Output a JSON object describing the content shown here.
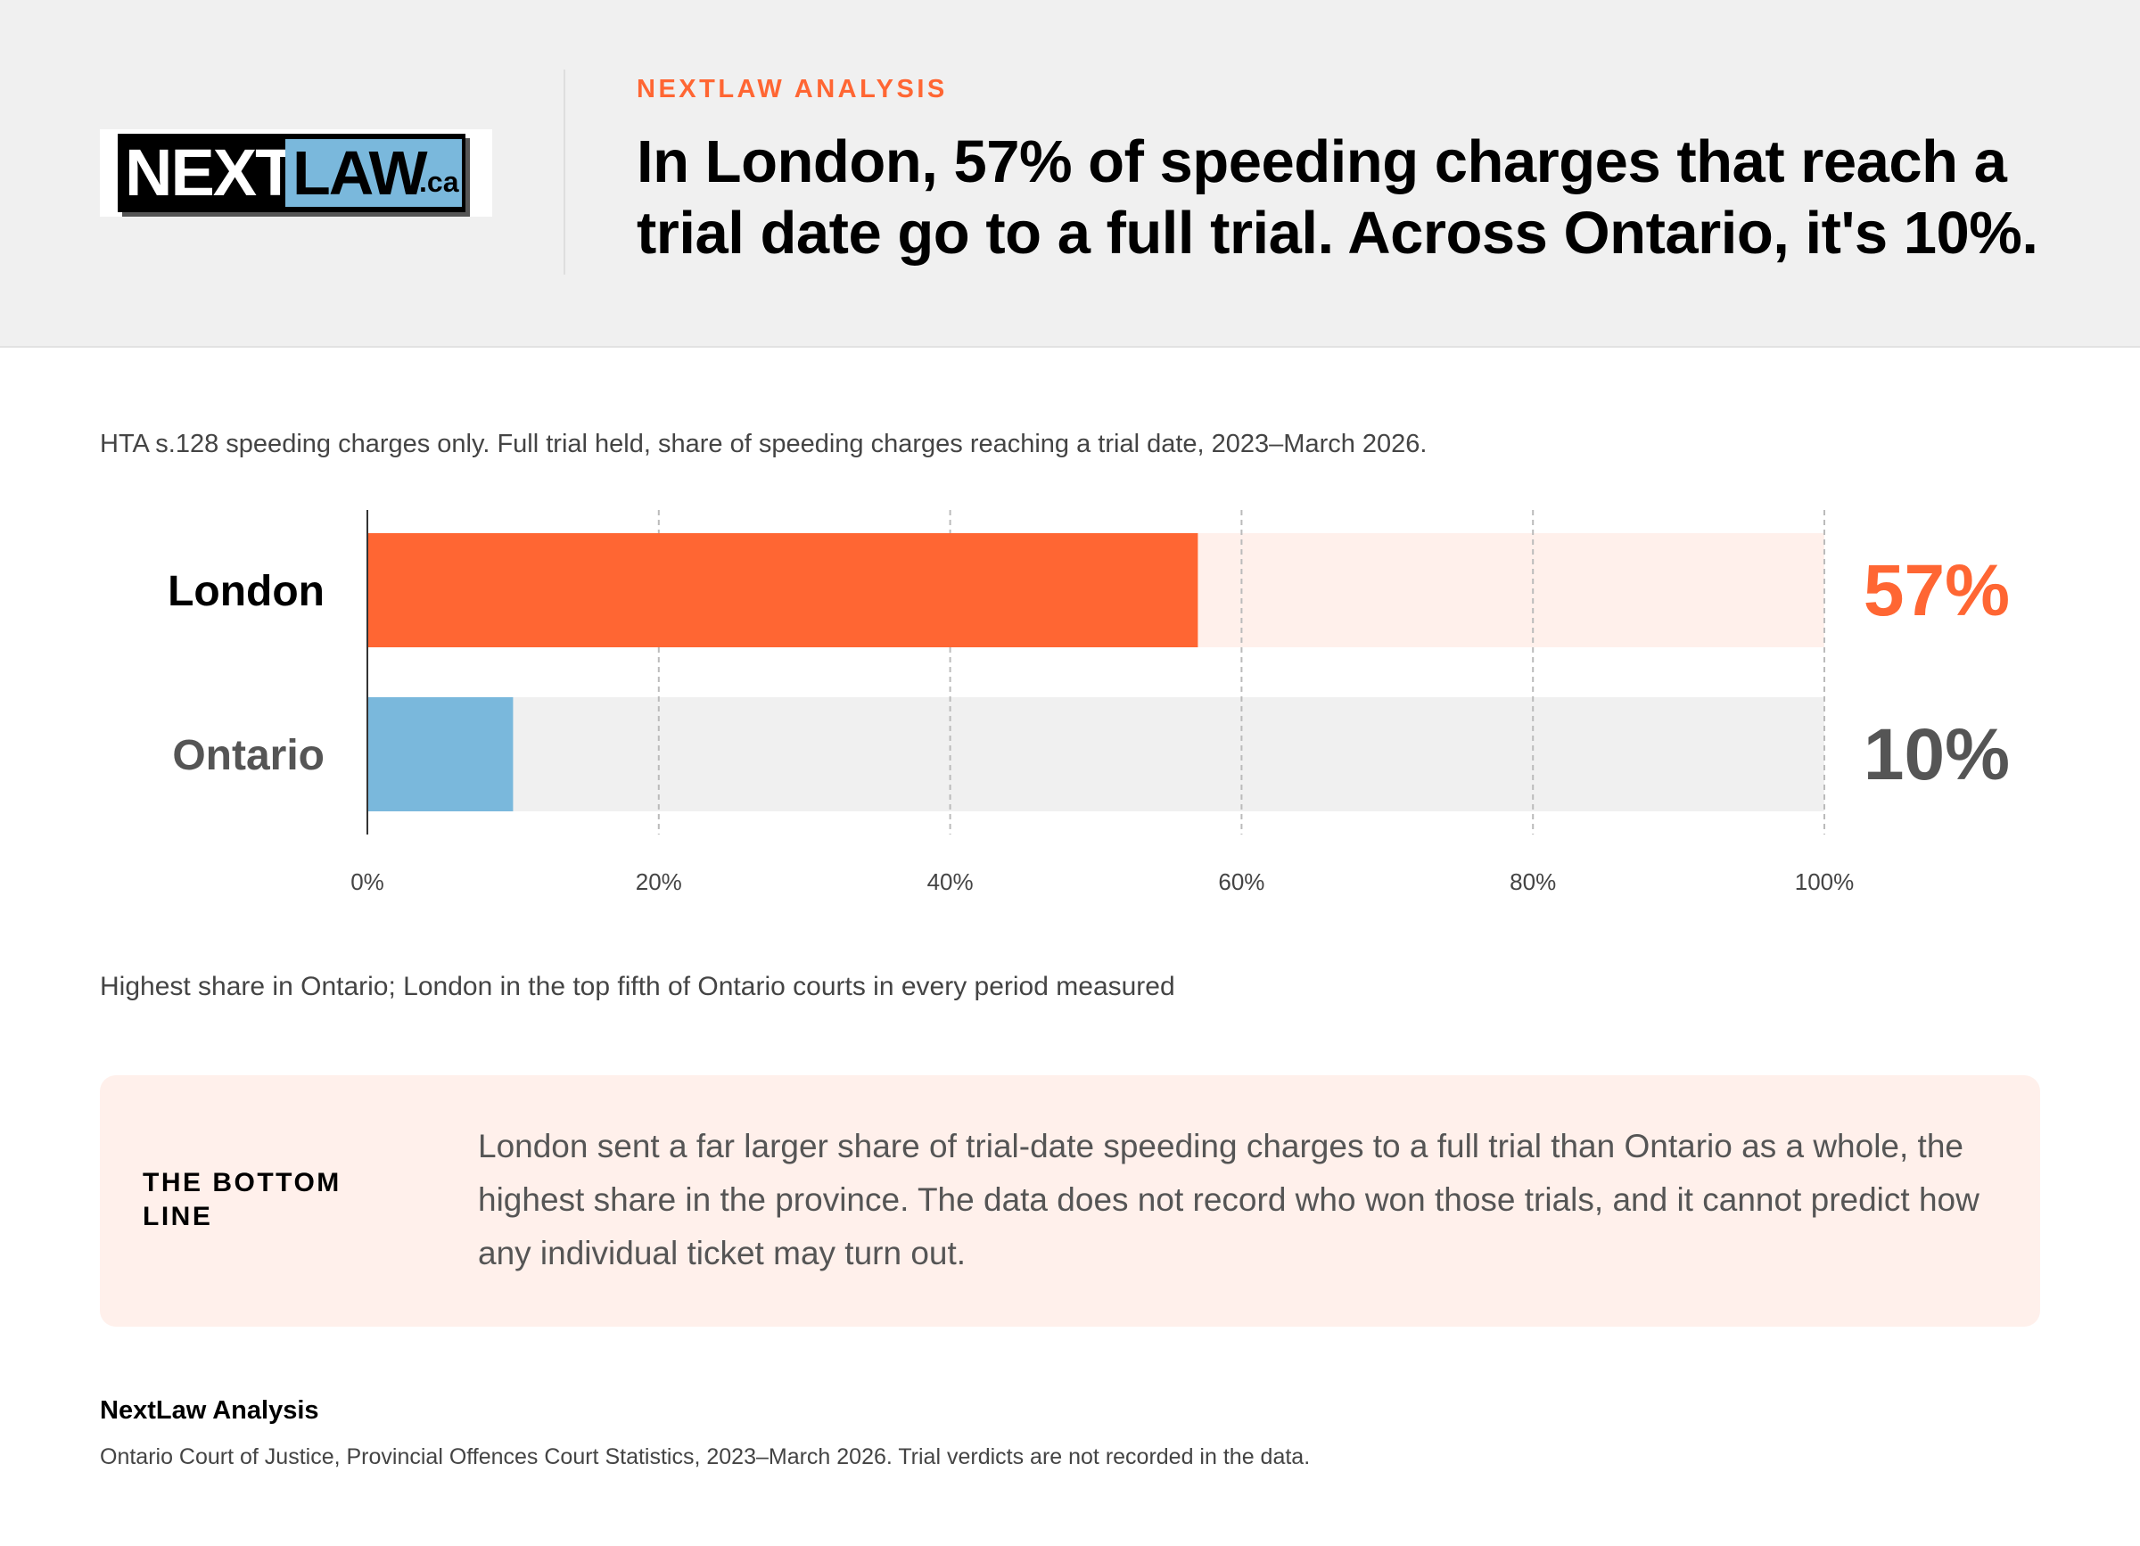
{
  "header": {
    "logo_next": "NEXT",
    "logo_law": "LAW",
    "logo_ca": ".ca",
    "kicker": "NEXTLAW ANALYSIS",
    "headline": "In London, 57% of speeding charges that reach a trial date go to a full trial. Across Ontario, it's 10%."
  },
  "subtitle": "HTA s.128 speeding charges only. Full trial held, share of speeding charges reaching a trial date, 2023–March 2026.",
  "colors": {
    "accent": "#ff6633",
    "accent_track": "#fff0eb",
    "secondary": "#7ab8dc",
    "secondary_track": "#f0f0f0",
    "dark_text": "#555555"
  },
  "chart_data": {
    "type": "bar",
    "orientation": "horizontal",
    "categories": [
      "London",
      "Ontario"
    ],
    "values": [
      57,
      10
    ],
    "value_labels": [
      "57%",
      "10%"
    ],
    "xlim": [
      0,
      100
    ],
    "x_ticks": [
      0,
      20,
      40,
      60,
      80,
      100
    ],
    "x_tick_labels": [
      "0%",
      "20%",
      "40%",
      "60%",
      "80%",
      "100%"
    ],
    "grid": true
  },
  "note": "Highest share in Ontario; London in the top fifth of Ontario courts in every period measured",
  "callout": {
    "label": "THE BOTTOM LINE",
    "body": "London sent a far larger share of trial-date speeding charges to a full trial than Ontario as a whole, the highest share in the province. The data does not record who won those trials, and it cannot predict how any individual ticket may turn out."
  },
  "source": {
    "title": "NextLaw Analysis",
    "text": "Ontario Court of Justice, Provincial Offences Court Statistics, 2023–March 2026. Trial verdicts are not recorded in the data."
  }
}
